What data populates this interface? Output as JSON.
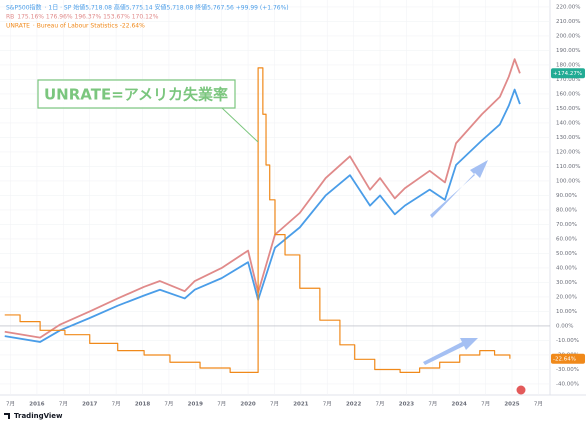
{
  "chart_data": {
    "type": "line",
    "legend_lines": [
      {
        "name": "S&P500指数",
        "detail": "· 1日 · SP  始値5,718.08  高値5,775.14  安値5,718.08  終値5,767.56  +99.99 (+1.76%)"
      },
      {
        "name": "RB",
        "detail": "175.16%  176.96%  196.37%  153.67%  170.12%"
      },
      {
        "name": "UNRATE",
        "detail": "· Bureau of Labour Statistics  -22.64%"
      }
    ],
    "annotation": "UNRATE=アメリカ失業率",
    "watermark": "TradingView",
    "series": [
      {
        "name": "S&P500指数",
        "color": "#4a9de8",
        "step": false,
        "x": [
          2015.39,
          2016.06,
          2016.44,
          2017.0,
          2017.53,
          2018.03,
          2018.33,
          2018.8,
          2018.99,
          2019.5,
          2020.0,
          2020.19,
          2020.51,
          2020.98,
          2021.47,
          2021.93,
          2022.31,
          2022.5,
          2022.78,
          2022.97,
          2023.44,
          2023.73,
          2023.94,
          2024.43,
          2024.77,
          2024.94,
          2025.05,
          2025.15
        ],
        "values": [
          -7,
          -11,
          -3,
          5.5,
          14,
          21,
          25,
          19,
          25,
          33,
          44,
          18,
          54,
          68,
          90,
          104,
          83,
          90,
          77,
          83,
          94,
          87,
          111,
          128,
          139,
          152,
          163,
          153
        ]
      },
      {
        "name": "RB",
        "color": "#e08a8a",
        "step": false,
        "x": [
          2015.39,
          2016.06,
          2016.44,
          2017.0,
          2017.53,
          2018.03,
          2018.33,
          2018.8,
          2018.99,
          2019.5,
          2020.0,
          2020.19,
          2020.51,
          2020.98,
          2021.47,
          2021.93,
          2022.31,
          2022.5,
          2022.78,
          2022.97,
          2023.44,
          2023.73,
          2023.94,
          2024.43,
          2024.77,
          2024.94,
          2025.05,
          2025.15
        ],
        "values": [
          -4,
          -8,
          1,
          10,
          19,
          27,
          31,
          24,
          31,
          40,
          52,
          23,
          63,
          78,
          102,
          117,
          94,
          102,
          88,
          95,
          107,
          99,
          126,
          146,
          158,
          172,
          184,
          174.27
        ]
      },
      {
        "name": "UNRATE",
        "color": "#f0891a",
        "step": true,
        "x": [
          2015.39,
          2015.68,
          2016.06,
          2016.53,
          2017.0,
          2017.53,
          2018.03,
          2018.52,
          2019.09,
          2019.66,
          2020.13,
          2020.19,
          2020.28,
          2020.34,
          2020.41,
          2020.51,
          2020.7,
          2020.98,
          2021.36,
          2021.74,
          2022.02,
          2022.4,
          2022.88,
          2023.25,
          2023.63,
          2024.01,
          2024.39,
          2024.67,
          2024.96
        ],
        "values": [
          7.6,
          3,
          -3,
          -6,
          -12,
          -17,
          -20,
          -25,
          -29,
          -32,
          -32,
          178,
          146,
          111,
          87,
          63,
          49,
          26,
          4,
          -13,
          -23,
          -30,
          -32,
          -29,
          -25,
          -20,
          -17,
          -20,
          -22.64
        ]
      }
    ],
    "price_labels": [
      {
        "value": 174.27,
        "label": "+174.27%",
        "color": "#22ab94"
      },
      {
        "value": -22.64,
        "label": "-22.64%",
        "color": "#f0891a"
      }
    ],
    "xlim": [
      2015.3,
      2025.72
    ],
    "xticks": [
      {
        "value": 2015.5,
        "label": "7月"
      },
      2016,
      {
        "value": 2016.5,
        "label": "7月"
      },
      2017,
      {
        "value": 2017.5,
        "label": "7月"
      },
      2018,
      {
        "value": 2018.5,
        "label": "7月"
      },
      2019,
      {
        "value": 2019.5,
        "label": "7月"
      },
      2020,
      {
        "value": 2020.5,
        "label": "7月"
      },
      2021,
      {
        "value": 2021.5,
        "label": "7月"
      },
      2022,
      {
        "value": 2022.5,
        "label": "7月"
      },
      2023,
      {
        "value": 2023.5,
        "label": "7月"
      },
      2024,
      {
        "value": 2024.5,
        "label": "7月"
      },
      2025,
      {
        "value": 2025.5,
        "label": "7月"
      }
    ],
    "ylim": [
      -47.6,
      224.8
    ],
    "yticks": [
      {
        "value": -40,
        "label": "-40.00%"
      },
      {
        "value": -30,
        "label": "-30.00%"
      },
      {
        "value": -20,
        "label": "-20.00%"
      },
      {
        "value": -10,
        "label": "-10.00%"
      },
      {
        "value": 0,
        "label": "0.00%"
      },
      {
        "value": 10,
        "label": "10.00%"
      },
      {
        "value": 20,
        "label": "20.00%"
      },
      {
        "value": 30,
        "label": "30.00%"
      },
      {
        "value": 40,
        "label": "40.00%"
      },
      {
        "value": 50,
        "label": "50.00%"
      },
      {
        "value": 60,
        "label": "60.00%"
      },
      {
        "value": 70,
        "label": "70.00%"
      },
      {
        "value": 80,
        "label": "80.00%"
      },
      {
        "value": 90,
        "label": "90.00%"
      },
      {
        "value": 100,
        "label": "100.00%"
      },
      {
        "value": 110,
        "label": "110.00%"
      },
      {
        "value": 120,
        "label": "120.00%"
      },
      {
        "value": 130,
        "label": "130.00%"
      },
      {
        "value": 140,
        "label": "140.00%"
      },
      {
        "value": 150,
        "label": "150.00%"
      },
      {
        "value": 160,
        "label": "160.00%"
      },
      {
        "value": 170,
        "label": "170.00%"
      },
      {
        "value": 180,
        "label": "180.00%"
      },
      {
        "value": 190,
        "label": "190.00%"
      },
      {
        "value": 200,
        "label": "200.00%"
      },
      {
        "value": 210,
        "label": "210.00%"
      },
      {
        "value": 220,
        "label": "220.00%"
      }
    ],
    "grid": true,
    "baseline": 0
  }
}
